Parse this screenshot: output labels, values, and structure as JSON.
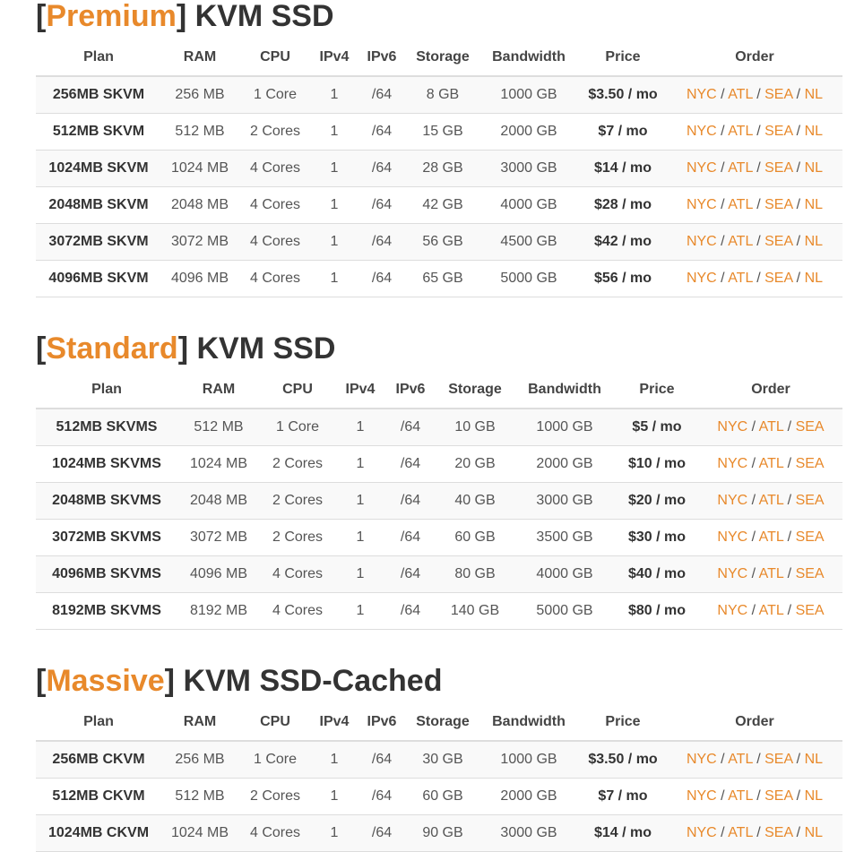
{
  "colors": {
    "accent": "#e8892b",
    "text": "#333333",
    "border": "#dddddd",
    "stripe": "#f9f9f9"
  },
  "headers": [
    "Plan",
    "RAM",
    "CPU",
    "IPv4",
    "IPv6",
    "Storage",
    "Bandwidth",
    "Price",
    "Order"
  ],
  "sections": [
    {
      "title_accent": "Premium",
      "title_rest": "KVM SSD",
      "rows": [
        {
          "plan": "256MB SKVM",
          "ram": "256 MB",
          "cpu": "1 Core",
          "ipv4": "1",
          "ipv6": "/64",
          "storage": "8 GB",
          "bandwidth": "1000 GB",
          "price": "$3.50 / mo"
        },
        {
          "plan": "512MB SKVM",
          "ram": "512 MB",
          "cpu": "2 Cores",
          "ipv4": "1",
          "ipv6": "/64",
          "storage": "15 GB",
          "bandwidth": "2000 GB",
          "price": "$7 / mo"
        },
        {
          "plan": "1024MB SKVM",
          "ram": "1024 MB",
          "cpu": "4 Cores",
          "ipv4": "1",
          "ipv6": "/64",
          "storage": "28 GB",
          "bandwidth": "3000 GB",
          "price": "$14 / mo"
        },
        {
          "plan": "2048MB SKVM",
          "ram": "2048 MB",
          "cpu": "4 Cores",
          "ipv4": "1",
          "ipv6": "/64",
          "storage": "42 GB",
          "bandwidth": "4000 GB",
          "price": "$28 / mo"
        },
        {
          "plan": "3072MB SKVM",
          "ram": "3072 MB",
          "cpu": "4 Cores",
          "ipv4": "1",
          "ipv6": "/64",
          "storage": "56 GB",
          "bandwidth": "4500 GB",
          "price": "$42 / mo"
        },
        {
          "plan": "4096MB SKVM",
          "ram": "4096 MB",
          "cpu": "4 Cores",
          "ipv4": "1",
          "ipv6": "/64",
          "storage": "65 GB",
          "bandwidth": "5000 GB",
          "price": "$56 / mo"
        }
      ],
      "order_locations": [
        "NYC",
        "ATL",
        "SEA",
        "NL"
      ]
    },
    {
      "title_accent": "Standard",
      "title_rest": "KVM SSD",
      "rows": [
        {
          "plan": "512MB SKVMS",
          "ram": "512 MB",
          "cpu": "1 Core",
          "ipv4": "1",
          "ipv6": "/64",
          "storage": "10 GB",
          "bandwidth": "1000 GB",
          "price": "$5 / mo"
        },
        {
          "plan": "1024MB SKVMS",
          "ram": "1024 MB",
          "cpu": "2 Cores",
          "ipv4": "1",
          "ipv6": "/64",
          "storage": "20 GB",
          "bandwidth": "2000 GB",
          "price": "$10 / mo"
        },
        {
          "plan": "2048MB SKVMS",
          "ram": "2048 MB",
          "cpu": "2 Cores",
          "ipv4": "1",
          "ipv6": "/64",
          "storage": "40 GB",
          "bandwidth": "3000 GB",
          "price": "$20 / mo"
        },
        {
          "plan": "3072MB SKVMS",
          "ram": "3072 MB",
          "cpu": "2 Cores",
          "ipv4": "1",
          "ipv6": "/64",
          "storage": "60 GB",
          "bandwidth": "3500 GB",
          "price": "$30 / mo"
        },
        {
          "plan": "4096MB SKVMS",
          "ram": "4096 MB",
          "cpu": "4 Cores",
          "ipv4": "1",
          "ipv6": "/64",
          "storage": "80 GB",
          "bandwidth": "4000 GB",
          "price": "$40 / mo"
        },
        {
          "plan": "8192MB SKVMS",
          "ram": "8192 MB",
          "cpu": "4 Cores",
          "ipv4": "1",
          "ipv6": "/64",
          "storage": "140 GB",
          "bandwidth": "5000 GB",
          "price": "$80 / mo"
        }
      ],
      "order_locations": [
        "NYC",
        "ATL",
        "SEA"
      ]
    },
    {
      "title_accent": "Massive",
      "title_rest": "KVM SSD-Cached",
      "rows": [
        {
          "plan": "256MB CKVM",
          "ram": "256 MB",
          "cpu": "1 Core",
          "ipv4": "1",
          "ipv6": "/64",
          "storage": "30 GB",
          "bandwidth": "1000 GB",
          "price": "$3.50 / mo"
        },
        {
          "plan": "512MB CKVM",
          "ram": "512 MB",
          "cpu": "2 Cores",
          "ipv4": "1",
          "ipv6": "/64",
          "storage": "60 GB",
          "bandwidth": "2000 GB",
          "price": "$7 / mo"
        },
        {
          "plan": "1024MB CKVM",
          "ram": "1024 MB",
          "cpu": "4 Cores",
          "ipv4": "1",
          "ipv6": "/64",
          "storage": "90 GB",
          "bandwidth": "3000 GB",
          "price": "$14 / mo"
        }
      ],
      "order_locations": [
        "NYC",
        "ATL",
        "SEA",
        "NL"
      ]
    }
  ]
}
